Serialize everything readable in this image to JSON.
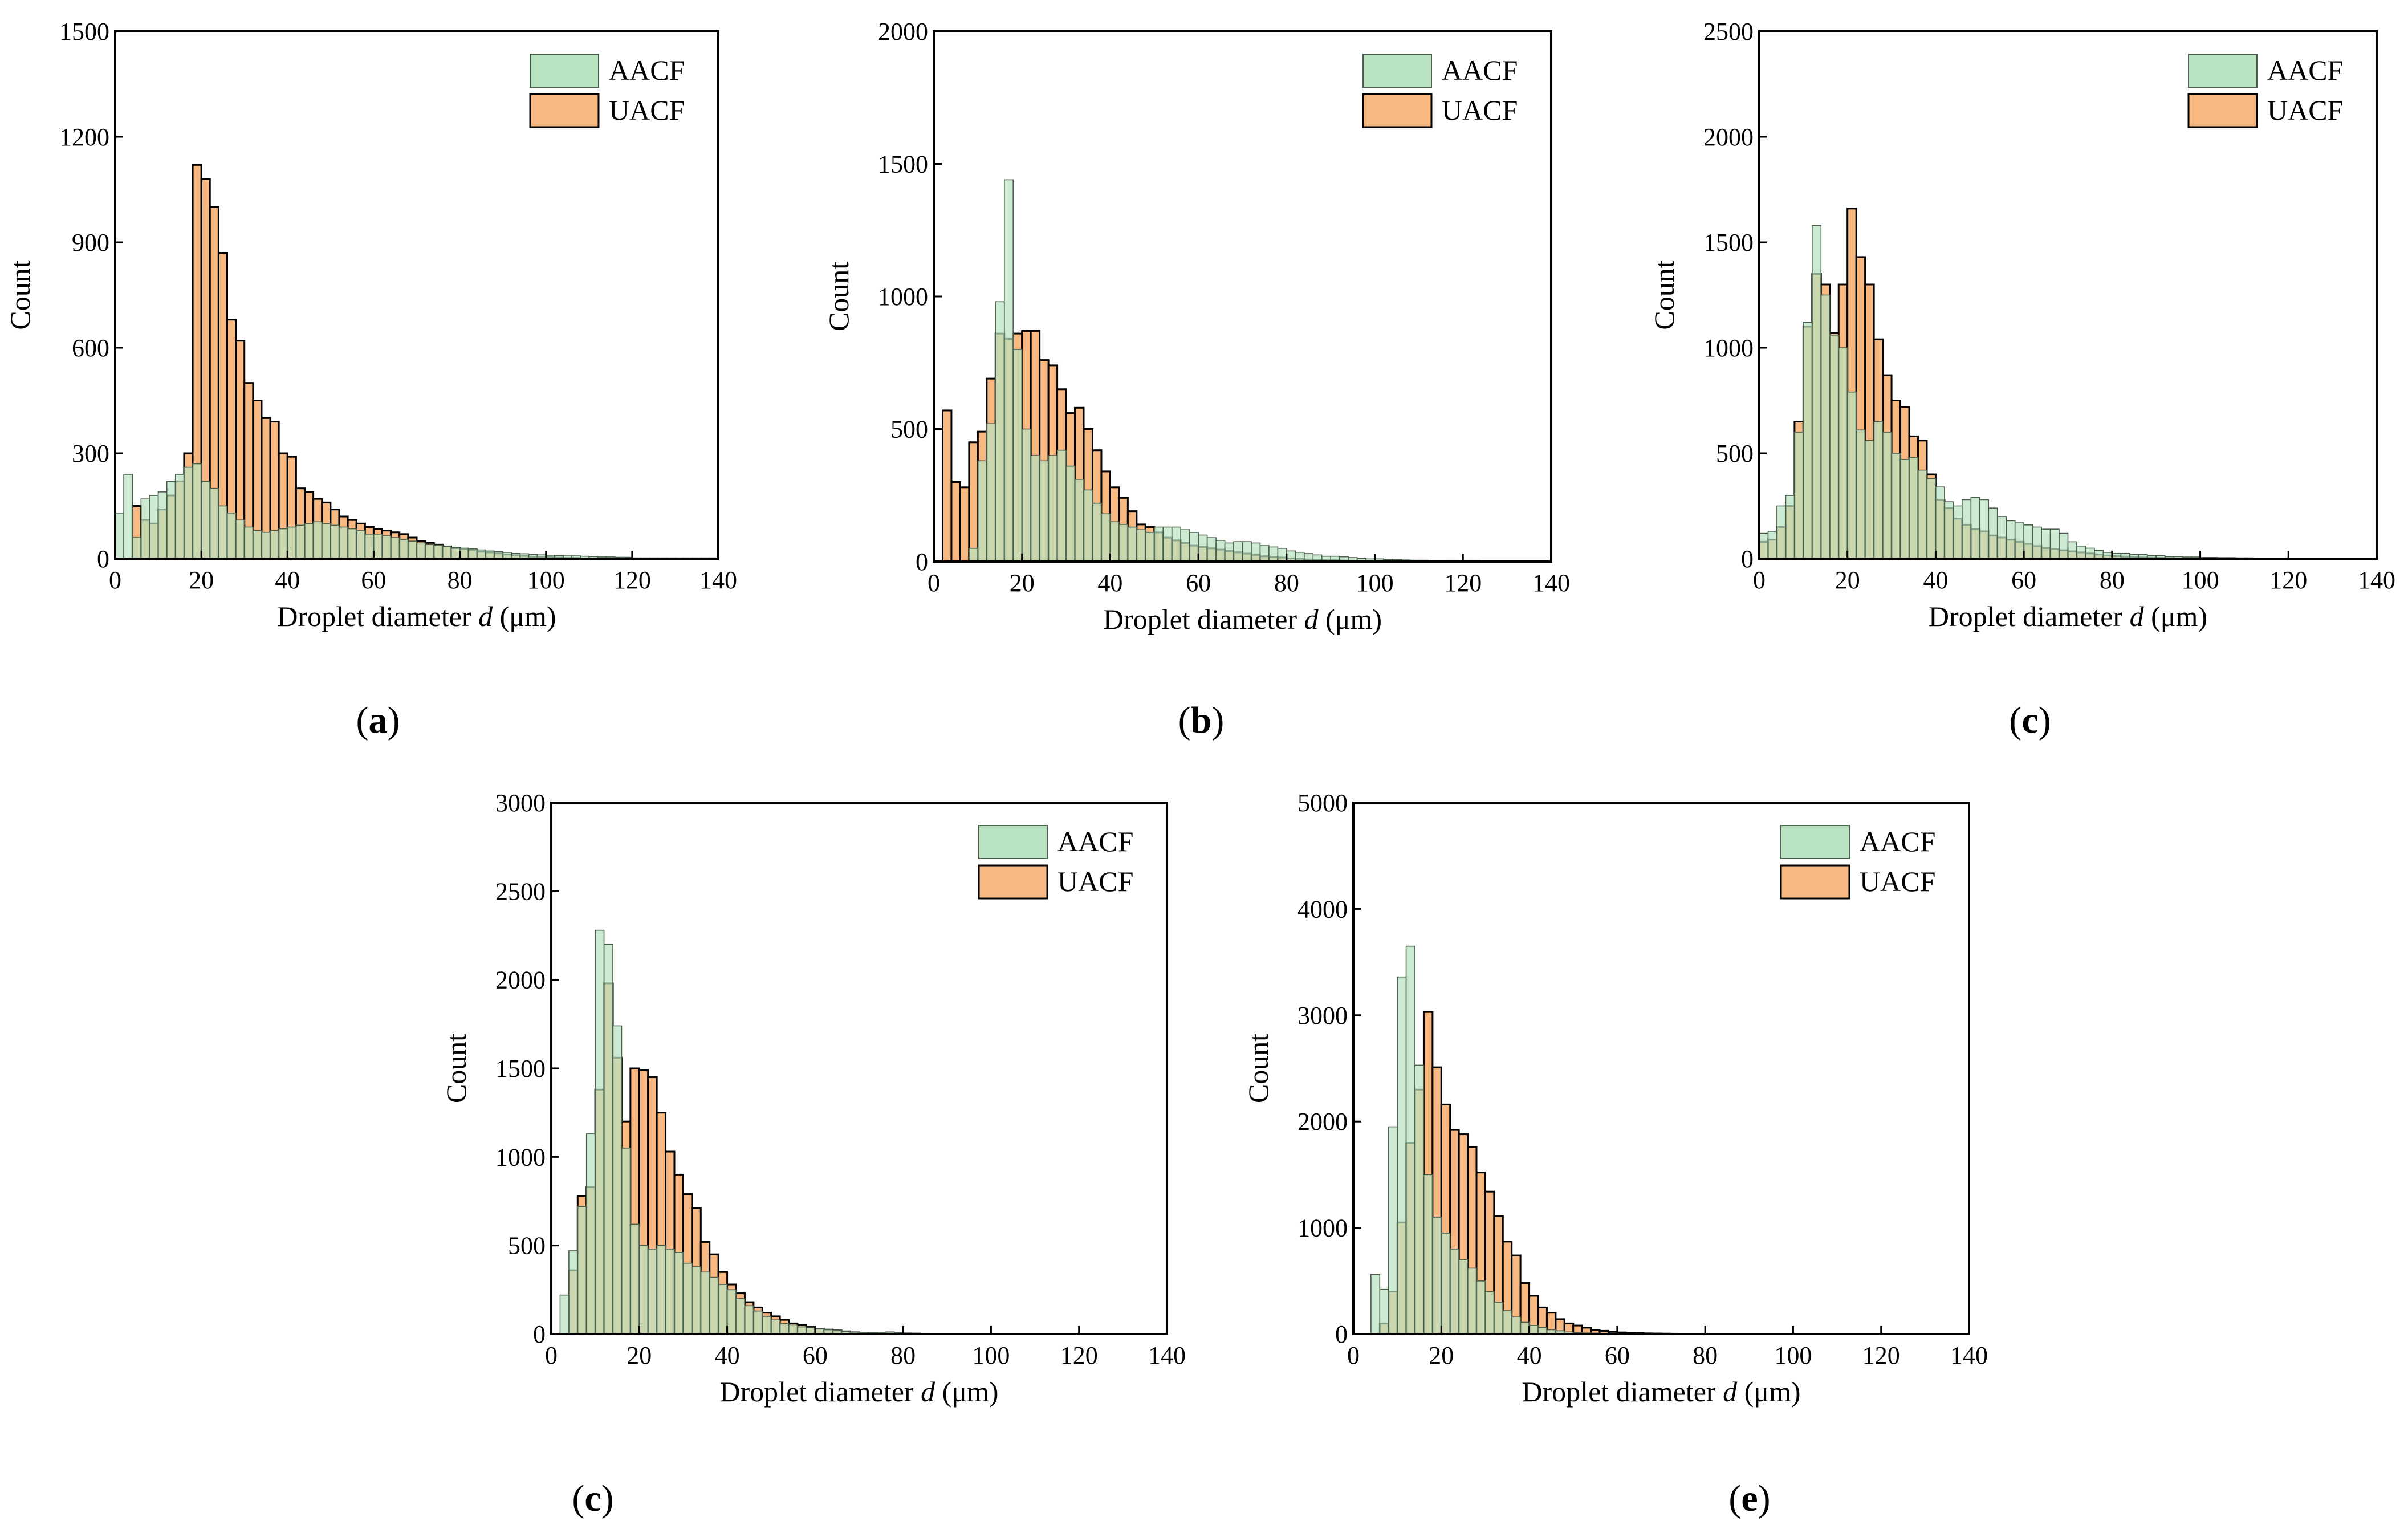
{
  "colors": {
    "aacf_fill": "#b9e3c0",
    "aacf_edge": "#4a5c4a",
    "uacf_fill": "#f7b882",
    "uacf_edge": "#000000",
    "overlap_note": "AACF drawn semi-transparent over UACF"
  },
  "chart_data": [
    {
      "id": "a",
      "panel_label": "(a)",
      "panel_letter": "a",
      "type": "bar",
      "xlabel_prefix": "Droplet diameter ",
      "xlabel_var": "d",
      "xlabel_unit": " (μm)",
      "ylabel": "Count",
      "xlim": [
        0,
        140
      ],
      "ylim": [
        0,
        1500
      ],
      "xticks": [
        0,
        20,
        40,
        60,
        80,
        100,
        120,
        140
      ],
      "yticks": [
        0,
        300,
        600,
        900,
        1200,
        1500
      ],
      "bin_width": 2,
      "legend": [
        "AACF",
        "UACF"
      ],
      "series": [
        {
          "name": "UACF",
          "bin_start": 4,
          "values": [
            150,
            110,
            100,
            140,
            180,
            220,
            300,
            1120,
            1080,
            1000,
            870,
            680,
            620,
            500,
            450,
            400,
            390,
            300,
            290,
            200,
            190,
            170,
            160,
            140,
            120,
            110,
            100,
            90,
            85,
            80,
            75,
            70,
            60,
            50,
            45,
            40,
            35,
            30,
            28,
            25,
            20,
            18,
            15,
            12,
            10,
            8,
            6,
            5,
            4,
            3,
            2,
            2,
            1,
            1,
            1,
            1,
            1,
            1,
            1,
            1,
            1,
            1,
            1,
            1,
            1,
            1,
            1,
            1
          ]
        },
        {
          "name": "AACF",
          "bin_start": 0,
          "values": [
            130,
            240,
            60,
            170,
            180,
            190,
            220,
            240,
            260,
            270,
            220,
            200,
            150,
            130,
            110,
            90,
            80,
            75,
            80,
            85,
            90,
            95,
            100,
            105,
            100,
            95,
            90,
            85,
            80,
            70,
            70,
            65,
            60,
            55,
            50,
            45,
            40,
            38,
            35,
            32,
            30,
            28,
            25,
            22,
            20,
            18,
            15,
            14,
            12,
            11,
            10,
            9,
            8,
            8,
            7,
            6,
            5,
            5,
            4,
            4
          ]
        }
      ]
    },
    {
      "id": "b",
      "panel_label": "(b)",
      "panel_letter": "b",
      "type": "bar",
      "xlabel_prefix": "Droplet diameter ",
      "xlabel_var": "d",
      "xlabel_unit": " (μm)",
      "ylabel": "Count",
      "xlim": [
        0,
        140
      ],
      "ylim": [
        0,
        2000
      ],
      "xticks": [
        0,
        20,
        40,
        60,
        80,
        100,
        120,
        140
      ],
      "yticks": [
        0,
        500,
        1000,
        1500,
        2000
      ],
      "bin_width": 2,
      "legend": [
        "AACF",
        "UACF"
      ],
      "series": [
        {
          "name": "UACF",
          "bin_start": 0,
          "values": [
            0,
            570,
            300,
            280,
            450,
            490,
            690,
            860,
            840,
            860,
            870,
            870,
            760,
            740,
            650,
            560,
            580,
            500,
            420,
            340,
            280,
            240,
            190,
            140,
            130,
            110,
            90,
            80,
            70,
            60,
            55,
            50,
            45,
            40,
            35,
            30,
            25,
            20,
            18,
            15,
            12,
            10,
            8,
            7,
            6,
            5,
            4,
            3,
            2,
            2,
            1,
            1,
            1,
            1,
            1,
            1,
            1,
            1,
            1,
            1,
            1,
            1,
            1,
            1,
            1,
            1,
            1,
            1,
            1,
            1
          ]
        },
        {
          "name": "AACF",
          "bin_start": 0,
          "values": [
            0,
            0,
            0,
            0,
            50,
            380,
            520,
            980,
            1440,
            800,
            500,
            400,
            380,
            400,
            420,
            360,
            310,
            270,
            220,
            180,
            150,
            140,
            130,
            120,
            110,
            130,
            130,
            130,
            120,
            110,
            100,
            90,
            80,
            70,
            75,
            75,
            70,
            60,
            55,
            50,
            40,
            35,
            30,
            25,
            20,
            20,
            18,
            15,
            12,
            10,
            10,
            8,
            8,
            6,
            5,
            5,
            4,
            4,
            3,
            3,
            3,
            3,
            2,
            2,
            2,
            2,
            2,
            2,
            2,
            2
          ]
        }
      ]
    },
    {
      "id": "c1",
      "panel_label": "(c)",
      "panel_letter": "c",
      "type": "bar",
      "xlabel_prefix": "Droplet diameter ",
      "xlabel_var": "d",
      "xlabel_unit": " (μm)",
      "ylabel": "Count",
      "xlim": [
        0,
        140
      ],
      "ylim": [
        0,
        2500
      ],
      "xticks": [
        0,
        20,
        40,
        60,
        80,
        100,
        120,
        140
      ],
      "yticks": [
        0,
        500,
        1000,
        1500,
        2000,
        2500
      ],
      "bin_width": 2,
      "legend": [
        "AACF",
        "UACF"
      ],
      "series": [
        {
          "name": "UACF",
          "bin_start": 0,
          "values": [
            80,
            90,
            150,
            250,
            650,
            1100,
            1350,
            1300,
            1070,
            1300,
            1660,
            1430,
            1300,
            1040,
            870,
            750,
            720,
            580,
            560,
            400,
            280,
            240,
            190,
            160,
            140,
            130,
            110,
            100,
            90,
            80,
            70,
            60,
            50,
            45,
            40,
            35,
            30,
            25,
            20,
            15,
            12,
            10,
            8,
            6,
            5,
            4,
            3,
            2,
            2,
            1,
            1,
            1,
            1,
            1,
            1,
            1,
            1,
            1,
            1,
            1
          ]
        },
        {
          "name": "AACF",
          "bin_start": 0,
          "values": [
            120,
            130,
            250,
            300,
            600,
            1120,
            1580,
            1250,
            1060,
            1000,
            790,
            610,
            560,
            650,
            600,
            500,
            470,
            480,
            420,
            380,
            340,
            270,
            250,
            280,
            290,
            280,
            240,
            200,
            180,
            170,
            160,
            150,
            140,
            140,
            120,
            80,
            60,
            50,
            40,
            30,
            25,
            25,
            20,
            20,
            15,
            15,
            10,
            10,
            8,
            8,
            6,
            6,
            5,
            5,
            4,
            4,
            3,
            3,
            2,
            2
          ]
        }
      ]
    },
    {
      "id": "c2",
      "panel_label": "(c)",
      "panel_letter": "c",
      "type": "bar",
      "xlabel_prefix": "Droplet diameter ",
      "xlabel_var": "d",
      "xlabel_unit": " (μm)",
      "ylabel": "Count",
      "xlim": [
        0,
        140
      ],
      "ylim": [
        0,
        3000
      ],
      "xticks": [
        0,
        20,
        40,
        60,
        80,
        100,
        120,
        140
      ],
      "yticks": [
        0,
        500,
        1000,
        1500,
        2000,
        2500,
        3000
      ],
      "bin_width": 2,
      "legend": [
        "AACF",
        "UACF"
      ],
      "series": [
        {
          "name": "UACF",
          "bin_start": 4,
          "values": [
            360,
            780,
            830,
            1380,
            1980,
            1560,
            1200,
            1500,
            1490,
            1450,
            1250,
            1030,
            900,
            790,
            710,
            520,
            450,
            350,
            280,
            230,
            180,
            150,
            120,
            100,
            80,
            60,
            50,
            40,
            30,
            25,
            20,
            15,
            10,
            8,
            6,
            5,
            4,
            3,
            2,
            2,
            1,
            1,
            1,
            1,
            1,
            1,
            1,
            1
          ]
        },
        {
          "name": "AACF",
          "bin_start": 2,
          "values": [
            220,
            470,
            720,
            1130,
            2280,
            2200,
            1740,
            1050,
            620,
            500,
            480,
            500,
            480,
            460,
            400,
            380,
            350,
            320,
            280,
            250,
            200,
            160,
            130,
            100,
            80,
            60,
            50,
            40,
            35,
            30,
            25,
            20,
            15,
            12,
            10,
            8,
            10,
            12,
            8,
            6,
            5,
            4,
            3,
            3,
            2,
            2,
            1,
            1,
            1
          ]
        }
      ]
    },
    {
      "id": "e",
      "panel_label": "(e)",
      "panel_letter": "e",
      "type": "bar",
      "xlabel_prefix": "Droplet diameter ",
      "xlabel_var": "d",
      "xlabel_unit": " (μm)",
      "ylabel": "Count",
      "xlim": [
        0,
        140
      ],
      "ylim": [
        0,
        5000
      ],
      "xticks": [
        0,
        20,
        40,
        60,
        80,
        100,
        120,
        140
      ],
      "yticks": [
        0,
        1000,
        2000,
        3000,
        4000,
        5000
      ],
      "bin_width": 2,
      "legend": [
        "AACF",
        "UACF"
      ],
      "series": [
        {
          "name": "UACF",
          "bin_start": 6,
          "values": [
            100,
            400,
            1050,
            1800,
            2300,
            3030,
            2510,
            2160,
            1920,
            1880,
            1760,
            1520,
            1340,
            1110,
            870,
            740,
            480,
            360,
            250,
            200,
            140,
            100,
            80,
            60,
            40,
            30,
            20,
            15,
            10,
            8,
            6,
            5,
            4,
            3,
            2,
            2,
            1,
            1,
            1
          ]
        },
        {
          "name": "AACF",
          "bin_start": 4,
          "values": [
            560,
            420,
            1950,
            3360,
            3650,
            2530,
            1500,
            1100,
            950,
            800,
            700,
            620,
            500,
            400,
            300,
            220,
            160,
            110,
            80,
            60,
            40,
            30,
            20,
            15,
            10,
            8,
            6,
            5,
            4,
            3,
            2,
            2,
            1,
            1,
            1
          ]
        }
      ]
    }
  ]
}
